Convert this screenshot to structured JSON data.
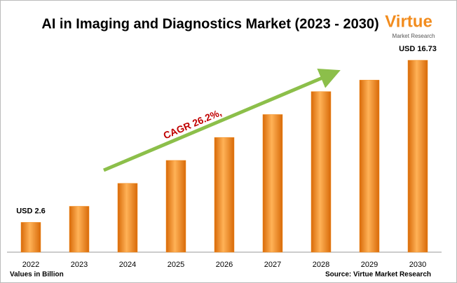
{
  "chart_data": {
    "type": "bar",
    "title": "AI in Imaging and Diagnostics Market (2023 - 2030)",
    "categories": [
      "2022",
      "2023",
      "2024",
      "2025",
      "2026",
      "2027",
      "2028",
      "2029",
      "2030"
    ],
    "values": [
      2.6,
      4.0,
      6.0,
      8.0,
      10.0,
      12.0,
      14.0,
      15.0,
      16.73
    ],
    "value_labels": [
      "USD 2.6",
      null,
      null,
      null,
      null,
      null,
      null,
      null,
      "USD 16.73"
    ],
    "color": "#f28c1e",
    "annotation": "CAGR 26.2%,",
    "axis_note": "Values in Billion",
    "source": "Source: Virtue Market Research",
    "logo": {
      "name": "Virtue",
      "tagline": "Market Research"
    }
  }
}
